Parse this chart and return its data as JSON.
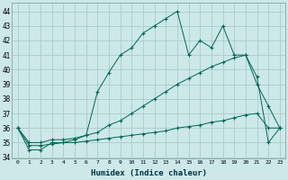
{
  "xlabel": "Humidex (Indice chaleur)",
  "background_color": "#cce8e8",
  "grid_color": "#aacccc",
  "line_color": "#006655",
  "xlim": [
    -0.5,
    23.5
  ],
  "ylim": [
    33.9,
    44.6
  ],
  "yticks": [
    34,
    35,
    36,
    37,
    38,
    39,
    40,
    41,
    42,
    43,
    44
  ],
  "xticks": [
    0,
    1,
    2,
    3,
    4,
    5,
    6,
    7,
    8,
    9,
    10,
    11,
    12,
    13,
    14,
    15,
    16,
    17,
    18,
    19,
    20,
    21,
    22,
    23
  ],
  "series1": [
    36.0,
    34.5,
    34.5,
    35.0,
    35.0,
    35.2,
    35.5,
    38.5,
    39.8,
    41.0,
    41.5,
    42.5,
    43.0,
    43.5,
    44.0,
    41.0,
    42.0,
    41.5,
    43.0,
    41.0,
    41.0,
    39.5,
    35.0,
    36.0
  ],
  "series2": [
    36.0,
    35.0,
    35.0,
    35.2,
    35.2,
    35.3,
    35.5,
    35.7,
    36.2,
    36.5,
    37.0,
    37.5,
    38.0,
    38.5,
    39.0,
    39.4,
    39.8,
    40.2,
    40.5,
    40.8,
    41.0,
    39.0,
    37.5,
    36.0
  ],
  "series3": [
    36.0,
    34.8,
    34.8,
    34.9,
    35.0,
    35.0,
    35.1,
    35.2,
    35.3,
    35.4,
    35.5,
    35.6,
    35.7,
    35.8,
    36.0,
    36.1,
    36.2,
    36.4,
    36.5,
    36.7,
    36.9,
    37.0,
    36.0,
    36.0
  ]
}
